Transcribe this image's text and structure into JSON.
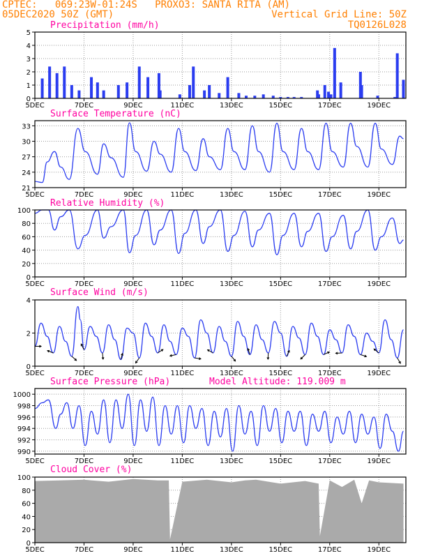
{
  "header": {
    "line1": "CPTEC:   069:23W-01:24S   PROXO3: SANTA RITA (AM)",
    "line2_left": "05DEC2020 50Z (GMT)",
    "line2_right": "Vertical Grid Line: 50Z",
    "line3_right": "TQ0126L028"
  },
  "colors": {
    "header": "#ff7f00",
    "title": "#ff00a0",
    "line": "#2a3cf0",
    "bar": "#2a3cf0",
    "cloud": "#aaaaaa",
    "grid": "#9a9a9a"
  },
  "x_date_labels": [
    "5DEC",
    "7DEC",
    "9DEC",
    "11DEC",
    "13DEC",
    "15DEC",
    "17DEC",
    "19DEC"
  ],
  "panels": [
    {
      "id": "precip",
      "title": "Precipitation (mm/h)",
      "y_ticks": [
        "0",
        "1",
        "2",
        "3",
        "4",
        "5"
      ]
    },
    {
      "id": "temp",
      "title": "Surface Temperature (nC)",
      "y_ticks": [
        "21",
        "24",
        "27",
        "30",
        "33"
      ]
    },
    {
      "id": "rh",
      "title": "Relative Humidity (%)",
      "y_ticks": [
        "0",
        "20",
        "40",
        "60",
        "80",
        "100"
      ]
    },
    {
      "id": "wind",
      "title": "Surface Wind (m/s)",
      "y_ticks": [
        "0",
        "2",
        "4"
      ]
    },
    {
      "id": "pres",
      "title": "Surface Pressure (hPa)",
      "extra": "Model Altitude: 119.009 m",
      "y_ticks": [
        "990",
        "992",
        "994",
        "996",
        "998",
        "1000"
      ]
    },
    {
      "id": "cloud",
      "title": "Cloud Cover (%)",
      "y_ticks": [
        "0",
        "20",
        "40",
        "60",
        "80",
        "100"
      ]
    }
  ],
  "chart_data": [
    {
      "type": "bar",
      "title": "Precipitation (mm/h)",
      "x_unit": "days since 05DEC 00Z",
      "xlim": [
        0,
        15.1
      ],
      "ylim": [
        0,
        5
      ],
      "x": [
        0.3,
        0.6,
        0.9,
        1.2,
        1.5,
        1.8,
        2.3,
        2.55,
        2.8,
        3.4,
        3.75,
        4.25,
        4.6,
        5.05,
        5.1,
        5.9,
        6.3,
        6.45,
        6.9,
        7.1,
        7.5,
        7.85,
        8.3,
        8.6,
        8.95,
        9.3,
        9.7,
        10.0,
        10.3,
        10.55,
        10.85,
        11.5,
        11.55,
        11.8,
        11.95,
        12.05,
        12.2,
        12.45,
        13.25,
        13.3,
        13.95,
        14.65,
        14.75,
        15.0
      ],
      "values": [
        1.5,
        2.4,
        1.9,
        2.4,
        1.0,
        0.6,
        1.6,
        1.2,
        0.6,
        1.0,
        1.2,
        2.4,
        1.6,
        1.9,
        0.6,
        0.3,
        1.0,
        2.4,
        0.6,
        1.0,
        0.4,
        1.6,
        0.4,
        0.2,
        0.2,
        0.3,
        0.2,
        0.1,
        0.1,
        0.1,
        0.1,
        0.6,
        0.3,
        1.0,
        0.5,
        0.3,
        3.8,
        1.2,
        2.0,
        1.0,
        0.2,
        0.1,
        3.4,
        1.4
      ]
    },
    {
      "type": "line",
      "title": "Surface Temperature (nC)",
      "ylim": [
        21,
        34
      ],
      "x": [
        0,
        0.3,
        0.5,
        0.8,
        1.05,
        1.4,
        1.75,
        2.05,
        2.55,
        2.8,
        3.1,
        3.6,
        3.85,
        4.1,
        4.55,
        4.85,
        5.1,
        5.55,
        5.85,
        6.1,
        6.55,
        6.85,
        7.1,
        7.55,
        7.85,
        8.1,
        8.55,
        8.85,
        9.1,
        9.55,
        9.85,
        10.1,
        10.55,
        10.85,
        11.1,
        11.55,
        11.85,
        12.1,
        12.55,
        12.85,
        13.1,
        13.55,
        13.85,
        14.1,
        14.55,
        14.85,
        15.0
      ],
      "y": [
        22.2,
        22.0,
        26.0,
        28.0,
        25.0,
        22.6,
        32.5,
        28.0,
        23.6,
        29.5,
        26.8,
        23.0,
        33.6,
        28.0,
        24.2,
        30.0,
        27.5,
        24.0,
        32.5,
        28.0,
        24.3,
        30.5,
        27.0,
        24.5,
        32.5,
        28.0,
        24.5,
        33.0,
        28.0,
        24.0,
        33.5,
        28.0,
        24.5,
        32.5,
        28.0,
        24.5,
        33.5,
        28.0,
        25.0,
        33.5,
        29.0,
        25.0,
        33.5,
        28.5,
        25.5,
        31.0,
        30.5
      ]
    },
    {
      "type": "line",
      "title": "Relative Humidity (%)",
      "ylim": [
        0,
        100
      ],
      "x": [
        0,
        0.3,
        0.55,
        0.8,
        1.05,
        1.4,
        1.75,
        2.05,
        2.55,
        2.8,
        3.1,
        3.6,
        3.85,
        4.1,
        4.55,
        4.85,
        5.1,
        5.55,
        5.85,
        6.1,
        6.55,
        6.85,
        7.1,
        7.55,
        7.85,
        8.1,
        8.55,
        8.85,
        9.1,
        9.55,
        9.85,
        10.1,
        10.55,
        10.85,
        11.1,
        11.55,
        11.85,
        12.1,
        12.55,
        12.85,
        13.1,
        13.55,
        13.85,
        14.1,
        14.55,
        14.85,
        15.0
      ],
      "y": [
        95,
        100,
        100,
        70,
        90,
        100,
        42,
        62,
        100,
        58,
        75,
        100,
        36,
        62,
        100,
        48,
        70,
        100,
        35,
        65,
        100,
        50,
        75,
        100,
        38,
        62,
        98,
        45,
        70,
        95,
        33,
        62,
        95,
        45,
        68,
        95,
        38,
        60,
        92,
        42,
        68,
        100,
        40,
        60,
        88,
        50,
        55
      ]
    },
    {
      "type": "line",
      "title": "Surface Wind (m/s)",
      "ylim": [
        0,
        4
      ],
      "x": [
        0,
        0.25,
        0.5,
        0.75,
        1.0,
        1.25,
        1.5,
        1.75,
        1.85,
        2.0,
        2.25,
        2.5,
        2.75,
        3.0,
        3.25,
        3.5,
        3.75,
        4.0,
        4.25,
        4.5,
        4.75,
        5.0,
        5.25,
        5.5,
        5.75,
        6.0,
        6.25,
        6.5,
        6.75,
        7.0,
        7.25,
        7.5,
        7.75,
        8.0,
        8.25,
        8.5,
        8.75,
        9.0,
        9.25,
        9.5,
        9.75,
        10.0,
        10.25,
        10.5,
        10.75,
        11.0,
        11.25,
        11.5,
        11.75,
        12.0,
        12.25,
        12.5,
        12.75,
        13.0,
        13.25,
        13.5,
        13.75,
        14.0,
        14.25,
        14.5,
        14.75,
        15.0
      ],
      "y": [
        1.2,
        2.6,
        1.8,
        0.8,
        2.4,
        1.5,
        0.6,
        3.6,
        2.8,
        1.0,
        2.4,
        1.8,
        0.8,
        2.5,
        1.6,
        0.4,
        2.3,
        2.0,
        0.5,
        2.6,
        1.8,
        0.8,
        2.5,
        1.5,
        0.7,
        2.3,
        1.8,
        0.5,
        2.8,
        2.0,
        0.8,
        2.4,
        1.5,
        0.6,
        2.7,
        1.8,
        0.7,
        2.5,
        1.6,
        0.8,
        2.7,
        2.0,
        0.6,
        2.4,
        1.7,
        0.7,
        2.6,
        1.8,
        0.7,
        2.2,
        1.6,
        0.8,
        2.5,
        1.8,
        0.7,
        2.0,
        1.5,
        0.8,
        2.8,
        1.6,
        0.5,
        2.2
      ]
    },
    {
      "type": "line",
      "title": "Surface Pressure (hPa)",
      "ylim": [
        989.5,
        1001
      ],
      "x": [
        0,
        0.3,
        0.55,
        0.85,
        1.05,
        1.3,
        1.55,
        1.8,
        2.05,
        2.3,
        2.55,
        2.8,
        3.05,
        3.3,
        3.55,
        3.8,
        4.05,
        4.3,
        4.55,
        4.8,
        5.05,
        5.3,
        5.55,
        5.8,
        6.05,
        6.3,
        6.55,
        6.8,
        7.05,
        7.3,
        7.55,
        7.8,
        8.05,
        8.3,
        8.55,
        8.8,
        9.05,
        9.3,
        9.55,
        9.8,
        10.05,
        10.3,
        10.55,
        10.8,
        11.05,
        11.3,
        11.55,
        11.8,
        12.05,
        12.3,
        12.55,
        12.8,
        13.05,
        13.3,
        13.55,
        13.8,
        14.05,
        14.3,
        14.55,
        14.8,
        15.0
      ],
      "y": [
        997.5,
        998.5,
        999.0,
        994.0,
        996.5,
        998.5,
        994.0,
        998.0,
        991.0,
        997.0,
        993.0,
        999.0,
        991.5,
        999.0,
        994.0,
        1000.0,
        991.0,
        999.0,
        993.5,
        999.5,
        991.0,
        998.0,
        993.0,
        998.0,
        991.5,
        998.0,
        994.0,
        997.5,
        991.0,
        997.0,
        992.5,
        997.5,
        990.0,
        998.0,
        993.0,
        997.0,
        991.0,
        998.0,
        993.5,
        997.5,
        991.5,
        997.0,
        993.5,
        997.0,
        991.0,
        996.5,
        993.5,
        997.0,
        991.5,
        996.0,
        993.0,
        997.0,
        991.5,
        996.5,
        993.0,
        996.0,
        990.5,
        996.5,
        993.5,
        990.0,
        993.5
      ]
    },
    {
      "type": "area",
      "title": "Cloud Cover (%)",
      "ylim": [
        0,
        100
      ],
      "x": [
        0,
        1,
        2,
        3,
        4,
        5,
        5.45,
        5.5,
        6,
        7,
        8,
        8.55,
        9,
        10,
        11,
        11.55,
        11.6,
        12,
        12.5,
        13,
        13.3,
        13.6,
        14,
        15.0
      ],
      "y": [
        94,
        95,
        96,
        93,
        97,
        95,
        95,
        5,
        93,
        96,
        92,
        95,
        96,
        90,
        94,
        90,
        10,
        95,
        85,
        96,
        60,
        95,
        92,
        90
      ]
    }
  ]
}
